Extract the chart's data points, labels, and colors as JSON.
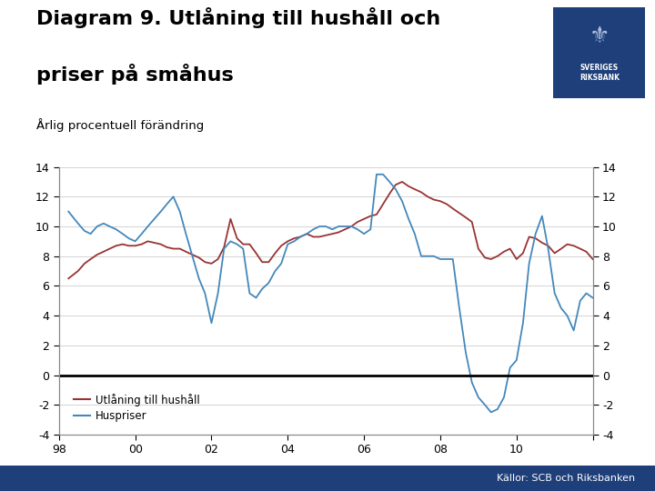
{
  "title_line1": "Diagram 9. Utlåning till hushåll och",
  "title_line2": "priser på småhus",
  "subtitle": "Årlig procentuell förändring",
  "source": "Källor: SCB och Riksbanken",
  "legend_utlaning": "Utlåning till hushåll",
  "legend_huspriser": "Huspriser",
  "color_utlaning": "#993333",
  "color_huspriser": "#4488bb",
  "background_color": "#ffffff",
  "footer_color": "#1e3f7a",
  "logo_color": "#1e3f7a",
  "ylim": [
    -4,
    14
  ],
  "yticks": [
    -4,
    -2,
    0,
    2,
    4,
    6,
    8,
    10,
    12,
    14
  ],
  "xlim_start": 1998.0,
  "xlim_end": 2012.0,
  "xtick_years": [
    1998,
    2000,
    2002,
    2004,
    2006,
    2008,
    2010,
    2012
  ],
  "xtick_labels": [
    "98",
    "00",
    "02",
    "04",
    "06",
    "08",
    "10",
    ""
  ],
  "utlaning": {
    "x": [
      1998.25,
      1998.5,
      1998.67,
      1998.83,
      1999.0,
      1999.17,
      1999.33,
      1999.5,
      1999.67,
      1999.83,
      2000.0,
      2000.17,
      2000.33,
      2000.5,
      2000.67,
      2000.83,
      2001.0,
      2001.17,
      2001.33,
      2001.5,
      2001.67,
      2001.83,
      2002.0,
      2002.17,
      2002.33,
      2002.5,
      2002.67,
      2002.83,
      2003.0,
      2003.17,
      2003.33,
      2003.5,
      2003.67,
      2003.83,
      2004.0,
      2004.17,
      2004.33,
      2004.5,
      2004.67,
      2004.83,
      2005.0,
      2005.17,
      2005.33,
      2005.5,
      2005.67,
      2005.83,
      2006.0,
      2006.17,
      2006.33,
      2006.5,
      2006.67,
      2006.83,
      2007.0,
      2007.17,
      2007.33,
      2007.5,
      2007.67,
      2007.83,
      2008.0,
      2008.17,
      2008.33,
      2008.5,
      2008.67,
      2008.83,
      2009.0,
      2009.17,
      2009.33,
      2009.5,
      2009.67,
      2009.83,
      2010.0,
      2010.17,
      2010.33,
      2010.5,
      2010.67,
      2010.83,
      2011.0,
      2011.17,
      2011.33,
      2011.5,
      2011.67,
      2011.83,
      2012.0
    ],
    "y": [
      6.5,
      7.0,
      7.5,
      7.8,
      8.1,
      8.3,
      8.5,
      8.7,
      8.8,
      8.7,
      8.7,
      8.8,
      9.0,
      8.9,
      8.8,
      8.6,
      8.5,
      8.5,
      8.3,
      8.1,
      7.9,
      7.6,
      7.5,
      7.8,
      8.6,
      10.5,
      9.2,
      8.8,
      8.8,
      8.2,
      7.6,
      7.6,
      8.2,
      8.7,
      9.0,
      9.2,
      9.3,
      9.5,
      9.3,
      9.3,
      9.4,
      9.5,
      9.6,
      9.8,
      10.0,
      10.3,
      10.5,
      10.7,
      10.8,
      11.5,
      12.2,
      12.8,
      13.0,
      12.7,
      12.5,
      12.3,
      12.0,
      11.8,
      11.7,
      11.5,
      11.2,
      10.9,
      10.6,
      10.3,
      8.5,
      7.9,
      7.8,
      8.0,
      8.3,
      8.5,
      7.8,
      8.2,
      9.3,
      9.2,
      8.9,
      8.7,
      8.2,
      8.5,
      8.8,
      8.7,
      8.5,
      8.3,
      7.8
    ]
  },
  "huspriser": {
    "x": [
      1998.25,
      1998.5,
      1998.67,
      1998.83,
      1999.0,
      1999.17,
      1999.33,
      1999.5,
      1999.67,
      1999.83,
      2000.0,
      2000.17,
      2000.33,
      2000.5,
      2000.67,
      2000.83,
      2001.0,
      2001.17,
      2001.33,
      2001.5,
      2001.67,
      2001.83,
      2002.0,
      2002.17,
      2002.33,
      2002.5,
      2002.67,
      2002.83,
      2003.0,
      2003.17,
      2003.33,
      2003.5,
      2003.67,
      2003.83,
      2004.0,
      2004.17,
      2004.33,
      2004.5,
      2004.67,
      2004.83,
      2005.0,
      2005.17,
      2005.33,
      2005.5,
      2005.67,
      2005.83,
      2006.0,
      2006.17,
      2006.33,
      2006.5,
      2006.67,
      2006.83,
      2007.0,
      2007.17,
      2007.33,
      2007.5,
      2007.67,
      2007.83,
      2008.0,
      2008.17,
      2008.33,
      2008.5,
      2008.67,
      2008.83,
      2009.0,
      2009.17,
      2009.33,
      2009.5,
      2009.67,
      2009.83,
      2010.0,
      2010.17,
      2010.33,
      2010.5,
      2010.67,
      2010.83,
      2011.0,
      2011.17,
      2011.33,
      2011.5,
      2011.67,
      2011.83,
      2012.0
    ],
    "y": [
      11.0,
      10.2,
      9.7,
      9.5,
      10.0,
      10.2,
      10.0,
      9.8,
      9.5,
      9.2,
      9.0,
      9.5,
      10.0,
      10.5,
      11.0,
      11.5,
      12.0,
      11.0,
      9.5,
      8.0,
      6.5,
      5.5,
      3.5,
      5.5,
      8.5,
      9.0,
      8.8,
      8.5,
      5.5,
      5.2,
      5.8,
      6.2,
      7.0,
      7.5,
      8.8,
      9.0,
      9.3,
      9.5,
      9.8,
      10.0,
      10.0,
      9.8,
      10.0,
      10.0,
      10.0,
      9.8,
      9.5,
      9.8,
      13.5,
      13.5,
      13.0,
      12.5,
      11.7,
      10.5,
      9.5,
      8.0,
      8.0,
      8.0,
      7.8,
      7.8,
      7.8,
      4.5,
      1.5,
      -0.5,
      -1.5,
      -2.0,
      -2.5,
      -2.3,
      -1.5,
      0.5,
      1.0,
      3.5,
      7.5,
      9.5,
      10.7,
      8.5,
      5.5,
      4.5,
      4.0,
      3.0,
      5.0,
      5.5,
      5.2
    ]
  }
}
